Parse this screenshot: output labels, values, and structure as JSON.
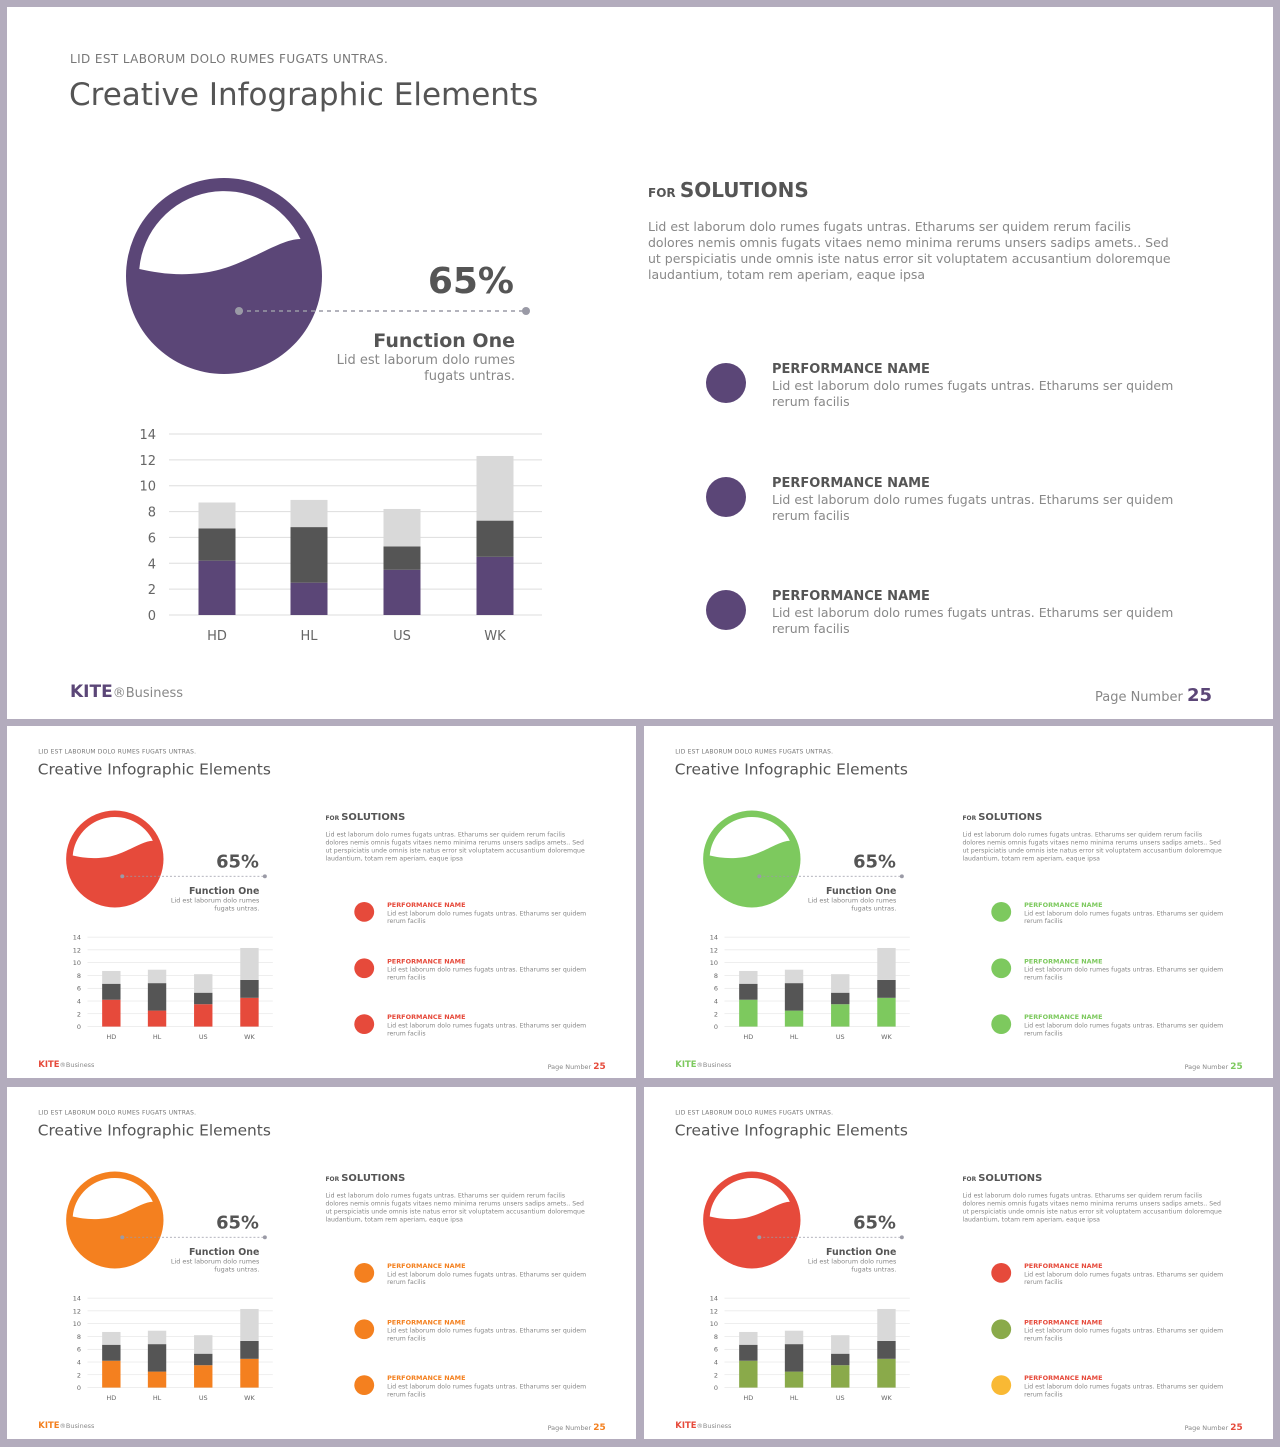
{
  "slide": {
    "subtitle": "LID EST LABORUM  DOLO  RUMES  FUGATS  UNTRAS.",
    "title": "Creative Infographic Elements",
    "gauge": {
      "percent": 65,
      "percent_label": "65%",
      "fill_level": 0.65
    },
    "function": {
      "title": "Function One",
      "desc_line1": "Lid est laborum dolo rumes",
      "desc_line2": "fugats untras."
    },
    "solutions": {
      "prefix": "FOR",
      "title": "SOLUTIONS",
      "paragraph": [
        "Lid est laborum dolo rumes fugats untras. Etharums ser quidem rerum facilis",
        "dolores nemis omnis fugats vitaes nemo minima rerums unsers sadips amets.. Sed",
        "ut perspiciatis unde omnis iste natus error sit voluptatem accusantium doloremque",
        "laudantium, totam rem aperiam, eaque ipsa"
      ]
    },
    "performance": [
      {
        "name": "PERFORMANCE NAME",
        "line1": "Lid est laborum dolo rumes fugats untras. Etharums ser quidem",
        "line2": "rerum facilis"
      },
      {
        "name": "PERFORMANCE NAME",
        "line1": "Lid est laborum dolo rumes fugats untras. Etharums ser quidem",
        "line2": "rerum facilis"
      },
      {
        "name": "PERFORMANCE NAME",
        "line1": "Lid est laborum dolo rumes fugats untras. Etharums ser quidem",
        "line2": "rerum facilis"
      }
    ],
    "footer": {
      "brand": "KITE",
      "brand_suffix": "®Business",
      "page_label": "Page  Number",
      "page_number": "25"
    }
  },
  "variants": [
    {
      "accent": "#5b4677",
      "bullets": [
        "#5b4677",
        "#5b4677",
        "#5b4677"
      ],
      "perf_name_color": "#555555",
      "dot_color": "#9a9aa6"
    },
    {
      "accent": "#e64a3b",
      "bullets": [
        "#e64a3b",
        "#e64a3b",
        "#e64a3b"
      ],
      "perf_name_color": "#e64a3b",
      "dot_color": "#9a9aa6"
    },
    {
      "accent": "#7dc95e",
      "bullets": [
        "#7dc95e",
        "#7dc95e",
        "#7dc95e"
      ],
      "perf_name_color": "#7dc95e",
      "dot_color": "#9a9aa6"
    },
    {
      "accent": "#f4801f",
      "bullets": [
        "#f4801f",
        "#f4801f",
        "#f4801f"
      ],
      "perf_name_color": "#f4801f",
      "dot_color": "#9a9aa6"
    },
    {
      "accent": "#e64a3b",
      "bullets": [
        "#e64a3b",
        "#8aaa4a",
        "#f9b934"
      ],
      "perf_name_color": "#e64a3b",
      "dot_color": "#9a9aa6",
      "bar_color": "#8aaa4a",
      "footer_color": "#e64a3b"
    }
  ],
  "chart_data": {
    "type": "bar",
    "stacked": true,
    "categories": [
      "HD",
      "HL",
      "US",
      "WK"
    ],
    "series": [
      {
        "values": [
          4.2,
          2.5,
          3.5,
          4.5
        ],
        "color": "accent"
      },
      {
        "values": [
          2.5,
          4.3,
          1.8,
          2.8
        ],
        "color": "#555555"
      },
      {
        "values": [
          2.0,
          2.1,
          2.9,
          5.0
        ],
        "color": "#d9d9d9"
      }
    ],
    "ylim": [
      0,
      14
    ],
    "yticks": [
      0,
      2,
      4,
      6,
      8,
      10,
      12,
      14
    ],
    "grid": true
  }
}
